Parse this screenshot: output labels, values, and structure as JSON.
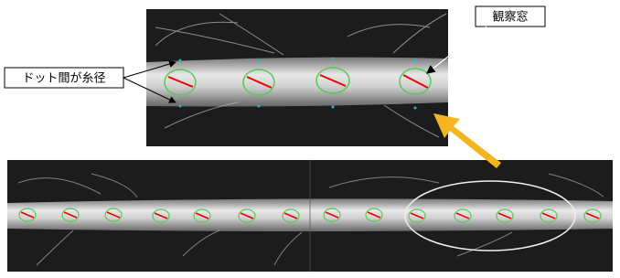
{
  "labels": {
    "yarn_diameter": "ドット間が糸径",
    "observation_window": "観察窓"
  }
}
